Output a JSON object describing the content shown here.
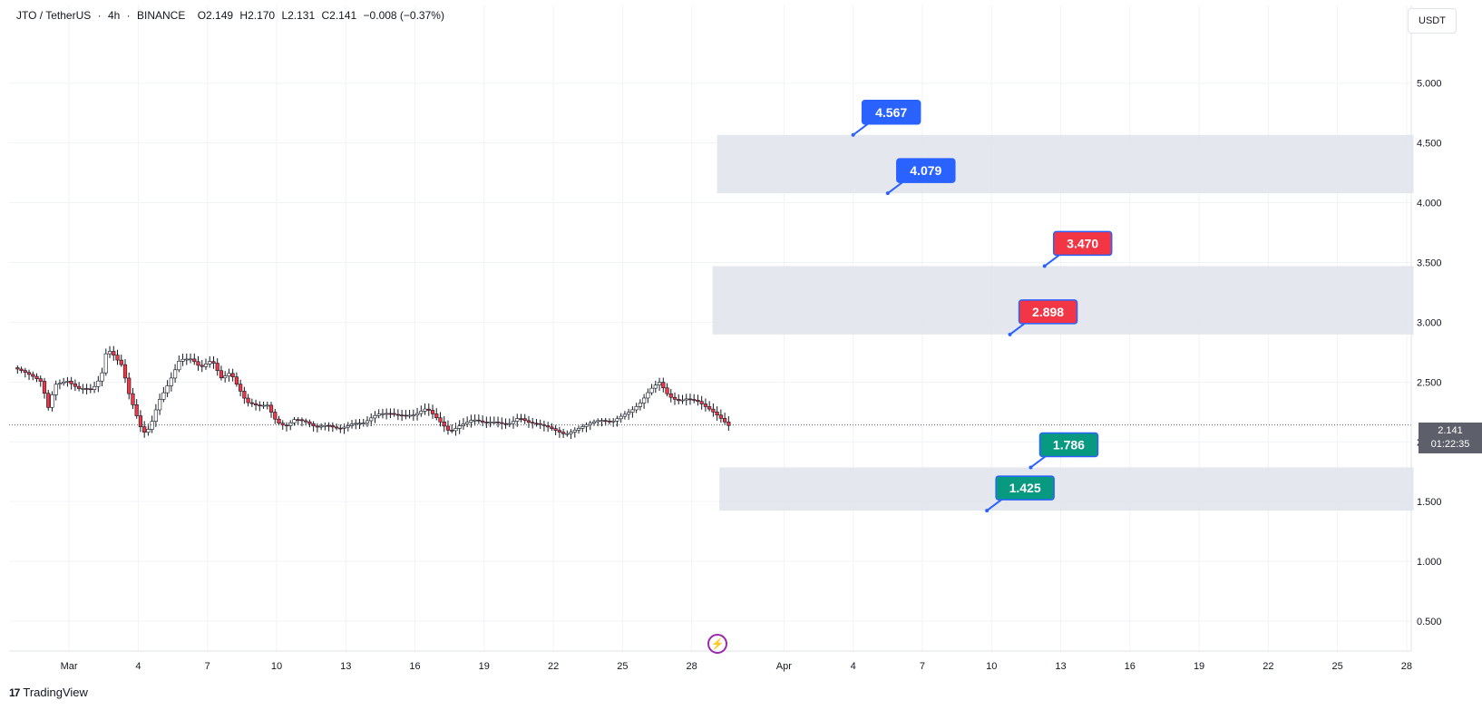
{
  "header": {
    "symbol": "JTO / TetherUS",
    "interval": "4h",
    "exchange": "BINANCE",
    "open": "O2.149",
    "high": "H2.170",
    "low": "L2.131",
    "close": "C2.141",
    "change": "−0.008 (−0.37%)",
    "separator": "·"
  },
  "currency": "USDT",
  "brand": "TradingView",
  "brand_mark": "17",
  "last_price": {
    "value": "2.141",
    "countdown": "01:22:35"
  },
  "colors": {
    "up": "#089981",
    "down": "#f23645",
    "candle_outline": "#131722",
    "zone": "#e0e3eb",
    "blue_label": "#2962ff",
    "red_label": "#f23645",
    "green_label": "#089981",
    "grid": "#f0f3fa"
  },
  "chart_data": {
    "type": "candlestick",
    "title": "",
    "xlabel": "",
    "ylabel": "",
    "ylim": [
      0.25,
      5.65
    ],
    "grid": true,
    "y_ticks": [
      "5.000",
      "4.500",
      "4.000",
      "3.500",
      "3.000",
      "2.500",
      "2.000",
      "1.500",
      "1.000",
      "0.500"
    ],
    "x_ticks": [
      {
        "label": "Mar",
        "day": 0
      },
      {
        "label": "4",
        "day": 3
      },
      {
        "label": "7",
        "day": 6
      },
      {
        "label": "10",
        "day": 9
      },
      {
        "label": "13",
        "day": 12
      },
      {
        "label": "16",
        "day": 15
      },
      {
        "label": "19",
        "day": 18
      },
      {
        "label": "22",
        "day": 21
      },
      {
        "label": "25",
        "day": 24
      },
      {
        "label": "28",
        "day": 27
      },
      {
        "label": "Apr",
        "day": 31
      },
      {
        "label": "4",
        "day": 34
      },
      {
        "label": "7",
        "day": 37
      },
      {
        "label": "10",
        "day": 40
      },
      {
        "label": "13",
        "day": 43
      },
      {
        "label": "16",
        "day": 46
      },
      {
        "label": "19",
        "day": 49
      },
      {
        "label": "22",
        "day": 52
      },
      {
        "label": "25",
        "day": 55
      },
      {
        "label": "28",
        "day": 58
      }
    ],
    "x_range": [
      -2.6,
      58.2
    ],
    "close_path": [
      [
        -2.4,
        2.62
      ],
      [
        -1.8,
        2.55
      ],
      [
        -1.2,
        2.5
      ],
      [
        -0.9,
        2.3
      ],
      [
        -0.6,
        2.5
      ],
      [
        -0.1,
        2.52
      ],
      [
        0.4,
        2.43
      ],
      [
        1.0,
        2.42
      ],
      [
        1.4,
        2.55
      ],
      [
        1.6,
        2.75
      ],
      [
        1.8,
        2.78
      ],
      [
        2.3,
        2.65
      ],
      [
        2.6,
        2.4
      ],
      [
        2.9,
        2.22
      ],
      [
        3.2,
        2.05
      ],
      [
        3.5,
        2.1
      ],
      [
        3.9,
        2.35
      ],
      [
        4.3,
        2.5
      ],
      [
        4.8,
        2.7
      ],
      [
        5.3,
        2.68
      ],
      [
        5.7,
        2.6
      ],
      [
        6.2,
        2.68
      ],
      [
        6.6,
        2.55
      ],
      [
        7.0,
        2.6
      ],
      [
        7.3,
        2.48
      ],
      [
        7.7,
        2.32
      ],
      [
        8.2,
        2.28
      ],
      [
        8.6,
        2.3
      ],
      [
        9.0,
        2.18
      ],
      [
        9.4,
        2.15
      ],
      [
        9.8,
        2.2
      ],
      [
        10.3,
        2.15
      ],
      [
        10.7,
        2.1
      ],
      [
        11.2,
        2.14
      ],
      [
        11.7,
        2.13
      ],
      [
        12.3,
        2.16
      ],
      [
        12.8,
        2.14
      ],
      [
        13.4,
        2.22
      ],
      [
        13.9,
        2.25
      ],
      [
        14.5,
        2.24
      ],
      [
        15.0,
        2.22
      ],
      [
        15.5,
        2.26
      ],
      [
        16.0,
        2.18
      ],
      [
        16.5,
        2.1
      ],
      [
        17.0,
        2.16
      ],
      [
        17.5,
        2.18
      ],
      [
        18.0,
        2.14
      ],
      [
        18.5,
        2.16
      ],
      [
        19.0,
        2.16
      ],
      [
        19.5,
        2.22
      ],
      [
        20.0,
        2.15
      ],
      [
        20.5,
        2.12
      ],
      [
        21.0,
        2.1
      ],
      [
        21.5,
        2.08
      ],
      [
        22.0,
        2.12
      ],
      [
        22.5,
        2.14
      ],
      [
        23.0,
        2.16
      ],
      [
        23.5,
        2.16
      ],
      [
        24.0,
        2.24
      ],
      [
        24.4,
        2.28
      ],
      [
        24.8,
        2.33
      ],
      [
        25.2,
        2.42
      ],
      [
        25.6,
        2.48
      ],
      [
        26.0,
        2.38
      ],
      [
        26.4,
        2.36
      ],
      [
        26.8,
        2.38
      ],
      [
        27.2,
        2.35
      ],
      [
        27.6,
        2.28
      ],
      [
        28.0,
        2.22
      ],
      [
        28.3,
        2.18
      ],
      [
        28.6,
        2.141
      ]
    ],
    "horizontal_line": {
      "value": 2.141,
      "style": "dotted"
    },
    "zones": [
      {
        "from_day": 28.1,
        "to_day": 58.3,
        "low": 4.079,
        "high": 4.567
      },
      {
        "from_day": 27.9,
        "to_day": 58.3,
        "low": 2.898,
        "high": 3.47
      },
      {
        "from_day": 28.2,
        "to_day": 58.3,
        "low": 1.425,
        "high": 1.786
      }
    ],
    "callouts": [
      {
        "label": "4.567",
        "color": "blue",
        "day": 34.0,
        "value": 4.567
      },
      {
        "label": "4.079",
        "color": "blue",
        "day": 35.5,
        "value": 4.079
      },
      {
        "label": "3.470",
        "color": "red",
        "day": 42.3,
        "value": 3.47
      },
      {
        "label": "2.898",
        "color": "red",
        "day": 40.8,
        "value": 2.898
      },
      {
        "label": "1.786",
        "color": "green",
        "day": 41.7,
        "value": 1.786
      },
      {
        "label": "1.425",
        "color": "green",
        "day": 39.8,
        "value": 1.425
      }
    ]
  }
}
